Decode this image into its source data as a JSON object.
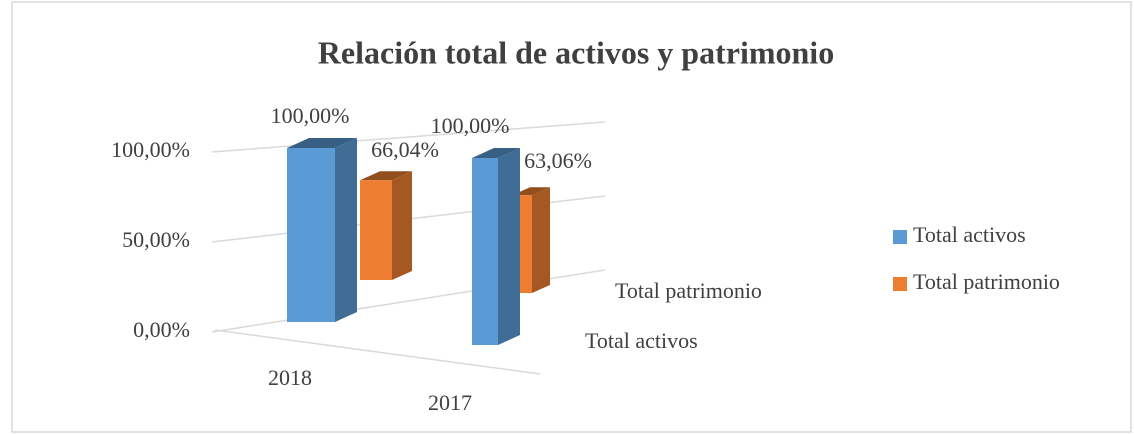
{
  "chart_data": {
    "type": "bar3d",
    "title": "Relación total de activos y patrimonio",
    "categories": [
      "2018",
      "2017"
    ],
    "series": [
      {
        "name": "Total activos",
        "color": "#5b9bd5",
        "values": [
          100,
          100
        ],
        "value_labels": [
          "100,00%",
          "100,00%"
        ]
      },
      {
        "name": "Total patrimonio",
        "color": "#ed7d31",
        "values": [
          66.04,
          63.06
        ],
        "value_labels": [
          "66,04%",
          "63,06%"
        ]
      }
    ],
    "ylim": [
      0,
      100
    ],
    "yticks": [
      {
        "value": 0,
        "label": "0,00%"
      },
      {
        "value": 50,
        "label": "50,00%"
      },
      {
        "value": 100,
        "label": "100,00%"
      }
    ],
    "grid": true,
    "legend": "right"
  }
}
